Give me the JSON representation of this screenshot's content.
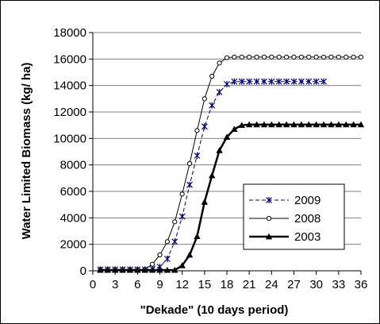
{
  "chart_data": {
    "type": "line",
    "title": "",
    "xlabel": "\"Dekade\" (10 days period)",
    "ylabel": "Water Limited Biomass (kg/ ha)",
    "xlim": [
      0,
      36
    ],
    "ylim": [
      0,
      18000
    ],
    "x_ticks": [
      "0",
      "3",
      "6",
      "9",
      "12",
      "15",
      "18",
      "21",
      "24",
      "27",
      "30",
      "33",
      "36"
    ],
    "y_ticks": [
      "0",
      "2000",
      "4000",
      "6000",
      "8000",
      "10000",
      "12000",
      "14000",
      "16000",
      "18000"
    ],
    "grid": "horizontal",
    "legend_position": "center-right",
    "series": [
      {
        "name": "2009",
        "style": "dashed",
        "marker": "star",
        "color": "#000080",
        "x": [
          1,
          2,
          3,
          4,
          5,
          6,
          7,
          8,
          9,
          10,
          11,
          12,
          13,
          14,
          15,
          16,
          17,
          18,
          19,
          20,
          21,
          22,
          23,
          24,
          25,
          26,
          27,
          28,
          29,
          30,
          31
        ],
        "y": [
          100,
          100,
          100,
          100,
          100,
          100,
          100,
          150,
          300,
          900,
          2200,
          4100,
          6500,
          8700,
          10900,
          12500,
          13500,
          14100,
          14300,
          14300,
          14300,
          14300,
          14300,
          14300,
          14300,
          14300,
          14300,
          14300,
          14300,
          14300,
          14300
        ]
      },
      {
        "name": "2008",
        "style": "solid",
        "marker": "circle-open",
        "color": "#000000",
        "x": [
          1,
          2,
          3,
          4,
          5,
          6,
          7,
          8,
          9,
          10,
          11,
          12,
          13,
          14,
          15,
          16,
          17,
          18,
          19,
          20,
          21,
          22,
          23,
          24,
          25,
          26,
          27,
          28,
          29,
          30,
          31,
          32,
          33,
          34,
          35,
          36
        ],
        "y": [
          100,
          100,
          100,
          100,
          100,
          100,
          100,
          500,
          1200,
          2200,
          3700,
          5800,
          8100,
          10600,
          13000,
          14700,
          15700,
          16100,
          16150,
          16150,
          16150,
          16150,
          16150,
          16150,
          16150,
          16150,
          16150,
          16150,
          16150,
          16150,
          16150,
          16150,
          16150,
          16150,
          16150,
          16150
        ]
      },
      {
        "name": "2003",
        "style": "solid-bold",
        "marker": "triangle",
        "color": "#000000",
        "x": [
          1,
          2,
          3,
          4,
          5,
          6,
          7,
          8,
          9,
          10,
          11,
          12,
          13,
          14,
          15,
          16,
          17,
          18,
          19,
          20,
          21,
          22,
          23,
          24,
          25,
          26,
          27,
          28,
          29,
          30,
          31,
          32,
          33,
          34,
          35,
          36
        ],
        "y": [
          50,
          50,
          50,
          50,
          50,
          50,
          50,
          50,
          50,
          50,
          50,
          400,
          1200,
          2600,
          5200,
          7200,
          9100,
          10100,
          10700,
          11000,
          11050,
          11050,
          11050,
          11050,
          11050,
          11050,
          11050,
          11050,
          11050,
          11050,
          11050,
          11050,
          11050,
          11050,
          11050,
          11050
        ]
      }
    ]
  }
}
